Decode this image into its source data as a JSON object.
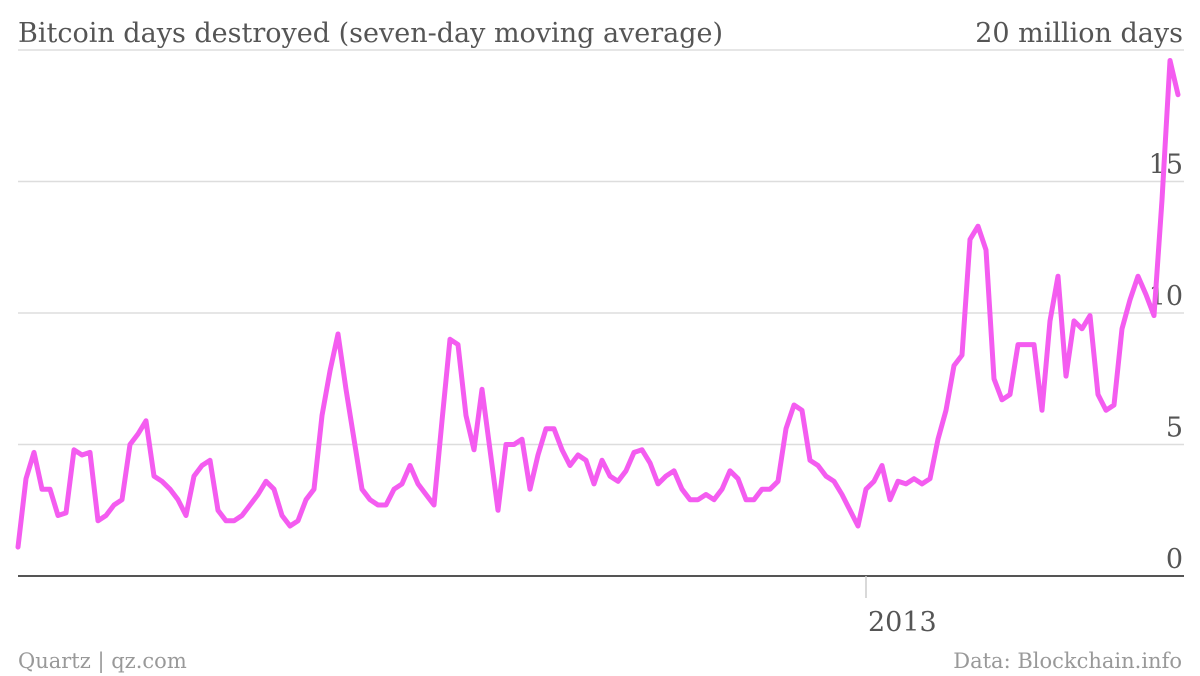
{
  "chart_data": {
    "type": "line",
    "title": "Bitcoin days destroyed (seven-day moving average)",
    "footer_left": "Quartz | qz.com",
    "footer_right": "Data: Blockchain.info",
    "categories": [
      null,
      null,
      null,
      null,
      null,
      null,
      null,
      null,
      null,
      null,
      null,
      null,
      null,
      null,
      null,
      null,
      null,
      null,
      null,
      null,
      null,
      null,
      null,
      null,
      null,
      null,
      null,
      null,
      null,
      null,
      null,
      null,
      null,
      null,
      null,
      null,
      null,
      null,
      null,
      null,
      null,
      null,
      null,
      null,
      null,
      null,
      null,
      null,
      null,
      null,
      null,
      null,
      null,
      null,
      null,
      null,
      null,
      null,
      null,
      null,
      null,
      null,
      null,
      null,
      null,
      null,
      null,
      null,
      null,
      null,
      null,
      null,
      null,
      null,
      null,
      null,
      null,
      null,
      null,
      null,
      null,
      null,
      null,
      null,
      null,
      null,
      null,
      null,
      null,
      null,
      null,
      null,
      null,
      null,
      null,
      null,
      null,
      null,
      null,
      null,
      null,
      null,
      null,
      null,
      null,
      null,
      "2013",
      null,
      null,
      null,
      null,
      null,
      null,
      null,
      null,
      null,
      null,
      null,
      null,
      null,
      null,
      null,
      null,
      null,
      null,
      null,
      null,
      null,
      null,
      null,
      null,
      null,
      null,
      null,
      null,
      null,
      null,
      null,
      null,
      null,
      null,
      null,
      null,
      null,
      null,
      null
    ],
    "series": [
      {
        "name": "Bitcoin days destroyed",
        "color": "#f45cf0",
        "values": [
          1.1,
          3.7,
          4.7,
          3.3,
          3.3,
          2.3,
          2.4,
          4.8,
          4.6,
          4.7,
          2.1,
          2.3,
          2.7,
          2.9,
          5.0,
          5.4,
          5.9,
          3.8,
          3.6,
          3.3,
          2.9,
          2.3,
          3.8,
          4.2,
          4.4,
          2.5,
          2.1,
          2.1,
          2.3,
          2.7,
          3.1,
          3.6,
          3.3,
          2.3,
          1.9,
          2.1,
          2.9,
          3.3,
          6.1,
          7.8,
          9.2,
          7.1,
          5.2,
          3.3,
          2.9,
          2.7,
          2.7,
          3.3,
          3.5,
          4.2,
          3.5,
          3.1,
          2.7,
          5.9,
          9.0,
          8.8,
          6.1,
          4.8,
          7.1,
          4.8,
          2.5,
          5.0,
          5.0,
          5.2,
          3.3,
          4.6,
          5.6,
          5.6,
          4.8,
          4.2,
          4.6,
          4.4,
          3.5,
          4.4,
          3.8,
          3.6,
          4.0,
          4.7,
          4.8,
          4.3,
          3.5,
          3.8,
          4.0,
          3.3,
          2.9,
          2.9,
          3.1,
          2.9,
          3.3,
          4.0,
          3.7,
          2.9,
          2.9,
          3.3,
          3.3,
          3.6,
          5.6,
          6.5,
          6.3,
          4.4,
          4.2,
          3.8,
          3.6,
          3.1,
          2.5,
          1.9,
          3.3,
          3.6,
          4.2,
          2.9,
          3.6,
          3.5,
          3.7,
          3.5,
          3.7,
          5.2,
          6.3,
          8.0,
          8.4,
          12.8,
          13.3,
          12.4,
          7.5,
          6.7,
          6.9,
          8.8,
          8.8,
          8.8,
          6.3,
          9.7,
          11.4,
          7.6,
          9.7,
          9.4,
          9.9,
          6.9,
          6.3,
          6.5,
          9.4,
          10.5,
          11.4,
          10.7,
          9.9,
          14.3,
          19.6,
          18.3
        ]
      }
    ],
    "ylim": [
      0,
      20
    ],
    "yticks": [
      0,
      5,
      10,
      15,
      {
        "value": 20,
        "label": "20 million days"
      }
    ],
    "grid": true
  }
}
